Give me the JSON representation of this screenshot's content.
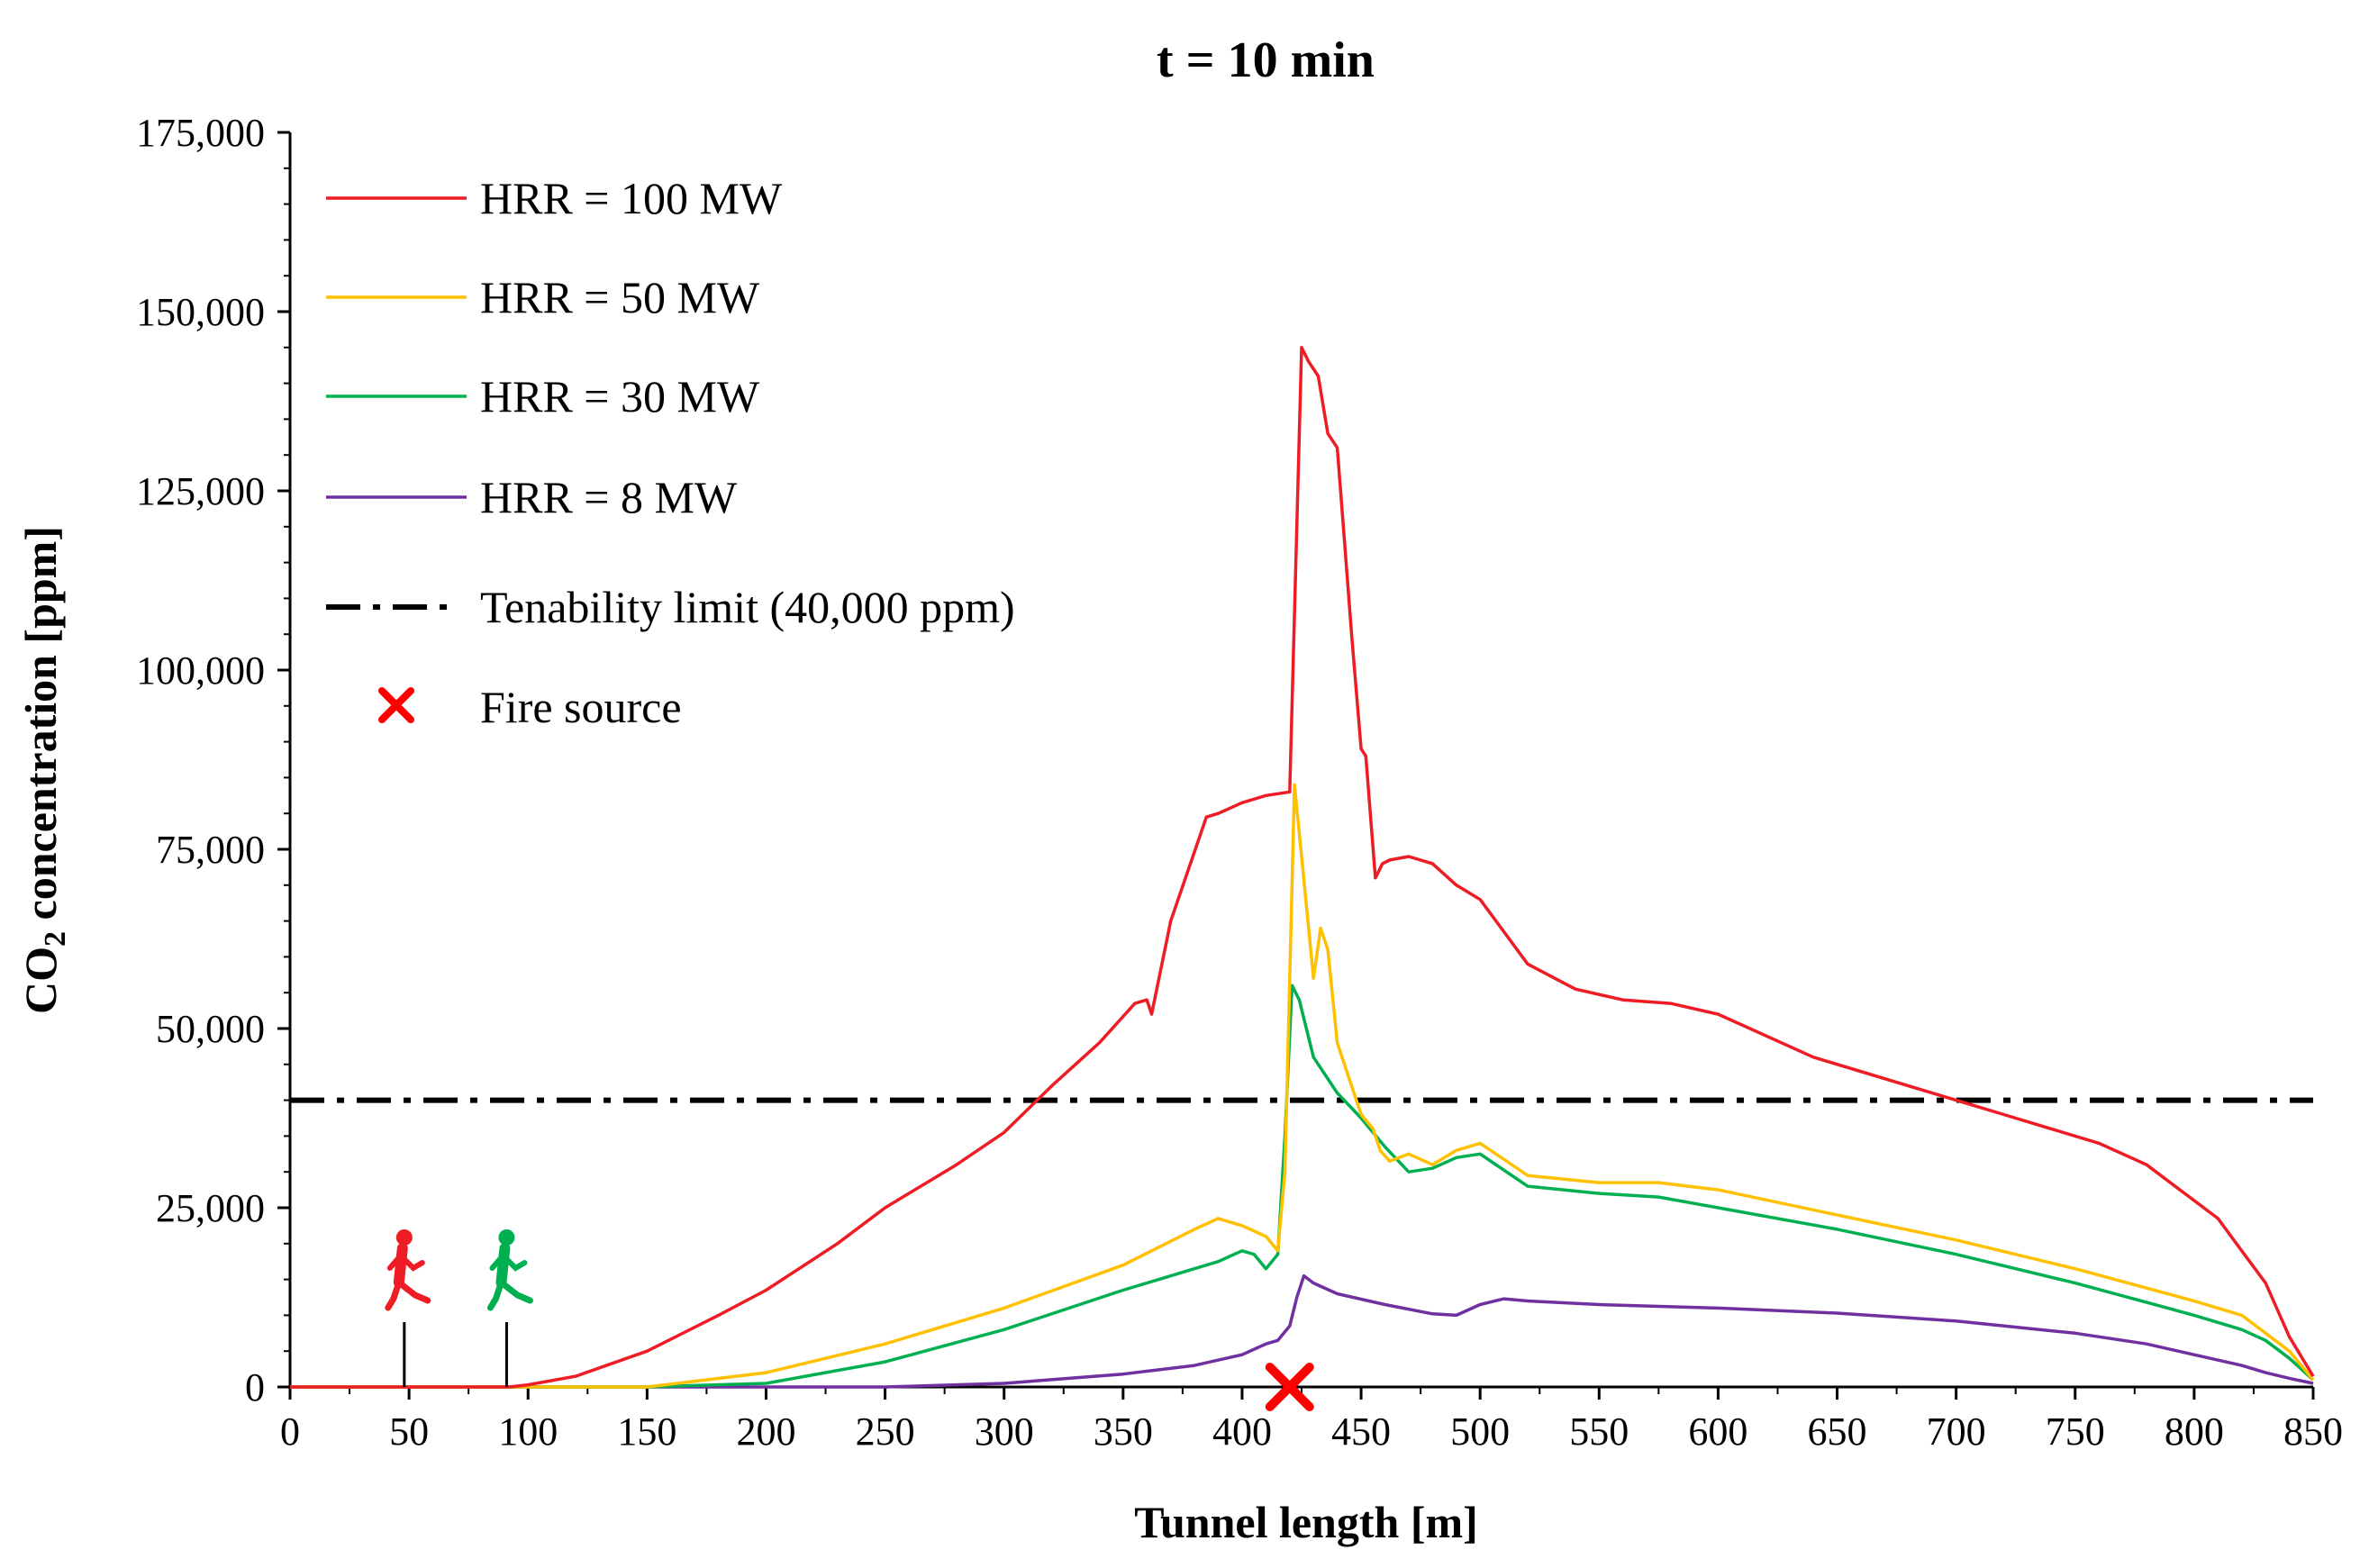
{
  "chart_data": {
    "type": "line",
    "title": "t = 10 min",
    "xlabel": "Tunnel length [m]",
    "ylabel_main": "CO",
    "ylabel_sub": "2",
    "ylabel_rest": " concentration  [ppm]",
    "xlim": [
      0,
      850
    ],
    "ylim": [
      0,
      175000
    ],
    "xticks": [
      0,
      50,
      100,
      150,
      200,
      250,
      300,
      350,
      400,
      450,
      500,
      550,
      600,
      650,
      700,
      750,
      800,
      850
    ],
    "yticks": [
      0,
      25000,
      50000,
      75000,
      100000,
      125000,
      150000,
      175000
    ],
    "ytick_labels": [
      "0",
      "25,000",
      "50,000",
      "75,000",
      "100,000",
      "125,000",
      "150,000",
      "175,000"
    ],
    "legend_position": "top-left",
    "series": [
      {
        "name": "HRR = 100 MW",
        "color": "#ee1c24",
        "x": [
          0,
          50,
          92,
          100,
          120,
          150,
          180,
          200,
          230,
          250,
          280,
          300,
          320,
          340,
          355,
          360,
          362,
          370,
          385,
          390,
          400,
          410,
          420,
          423,
          425,
          428,
          432,
          436,
          440,
          443,
          446,
          450,
          452,
          456,
          459,
          462,
          470,
          480,
          490,
          500,
          520,
          540,
          560,
          580,
          600,
          640,
          680,
          700,
          720,
          740,
          760,
          780,
          800,
          810,
          820,
          830,
          840,
          850
        ],
        "values": [
          0,
          0,
          0,
          300,
          1500,
          5000,
          10000,
          13500,
          20000,
          25000,
          31000,
          35500,
          42000,
          48000,
          53500,
          54000,
          52000,
          65000,
          79500,
          80000,
          81500,
          82500,
          83000,
          120000,
          145000,
          143000,
          141000,
          133000,
          131000,
          118000,
          105000,
          89000,
          88000,
          71000,
          73000,
          73500,
          74000,
          73000,
          70000,
          68000,
          59000,
          55500,
          54000,
          53500,
          52000,
          46000,
          42000,
          40000,
          38000,
          36000,
          34000,
          31000,
          26000,
          23500,
          19000,
          14500,
          7000,
          1500
        ]
      },
      {
        "name": "HRR = 50 MW",
        "color": "#ffc000",
        "x": [
          0,
          150,
          200,
          250,
          300,
          350,
          380,
          390,
          400,
          410,
          415,
          418,
          422,
          425,
          430,
          433,
          436,
          440,
          445,
          450,
          455,
          458,
          462,
          470,
          480,
          490,
          500,
          520,
          550,
          575,
          600,
          650,
          700,
          750,
          800,
          820,
          830,
          840,
          850
        ],
        "values": [
          0,
          0,
          2000,
          6000,
          11000,
          17000,
          22000,
          23500,
          22500,
          21000,
          19000,
          30000,
          84000,
          74000,
          57000,
          64000,
          61000,
          48000,
          43000,
          38000,
          36000,
          33000,
          31500,
          32500,
          31000,
          33000,
          34000,
          29500,
          28500,
          28500,
          27500,
          24000,
          20500,
          16500,
          12000,
          10000,
          7500,
          5000,
          1000
        ]
      },
      {
        "name": "HRR = 30 MW",
        "color": "#00b050",
        "x": [
          0,
          150,
          200,
          250,
          300,
          350,
          390,
          400,
          405,
          410,
          415,
          418,
          421,
          424,
          430,
          440,
          450,
          460,
          470,
          480,
          490,
          500,
          520,
          550,
          575,
          600,
          650,
          700,
          750,
          800,
          820,
          830,
          840,
          850
        ],
        "values": [
          0,
          0,
          500,
          3500,
          8000,
          13500,
          17500,
          19000,
          18500,
          16500,
          18500,
          35000,
          56000,
          54000,
          46000,
          41000,
          37500,
          33500,
          30000,
          30500,
          32000,
          32500,
          28000,
          27000,
          26500,
          25000,
          22000,
          18500,
          14500,
          10000,
          8000,
          6500,
          4000,
          1000
        ]
      },
      {
        "name": "HRR = 8 MW",
        "color": "#7030a0",
        "x": [
          0,
          250,
          300,
          350,
          380,
          400,
          410,
          415,
          420,
          423,
          426,
          430,
          440,
          460,
          480,
          490,
          500,
          510,
          520,
          550,
          600,
          650,
          700,
          750,
          780,
          800,
          820,
          830,
          840,
          850
        ],
        "values": [
          0,
          0,
          500,
          1800,
          3000,
          4500,
          6000,
          6500,
          8500,
          12500,
          15500,
          14500,
          13000,
          11500,
          10200,
          10000,
          11500,
          12300,
          12000,
          11500,
          11000,
          10300,
          9200,
          7500,
          6000,
          4500,
          3000,
          2000,
          1200,
          500
        ]
      }
    ],
    "tenability_limit": {
      "label": "Tenability limit (40,000 ppm)",
      "value": 40000,
      "color": "#000000"
    },
    "fire_source": {
      "label": "Fire source",
      "x": 420,
      "y": 0,
      "color": "#ff0000"
    },
    "occupants": [
      {
        "name": "runner-red",
        "x": 48,
        "color": "#ee1c24"
      },
      {
        "name": "runner-green",
        "x": 91,
        "color": "#00b050"
      }
    ]
  }
}
